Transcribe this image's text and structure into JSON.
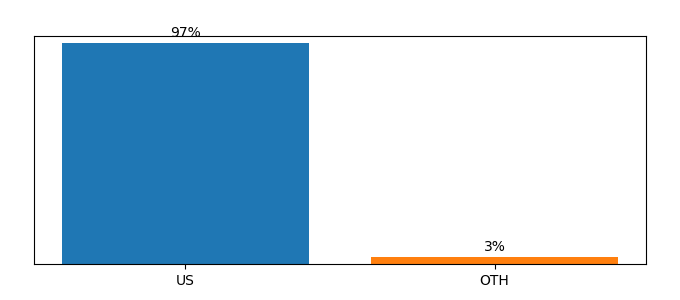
{
  "chart_data": {
    "type": "bar",
    "categories": [
      "US",
      "OTH"
    ],
    "values": [
      97,
      3
    ],
    "value_labels": [
      "97%",
      "3%"
    ],
    "data_labels": true,
    "ylim": [
      0,
      100
    ],
    "tick_labels": "x",
    "grid": false
  }
}
